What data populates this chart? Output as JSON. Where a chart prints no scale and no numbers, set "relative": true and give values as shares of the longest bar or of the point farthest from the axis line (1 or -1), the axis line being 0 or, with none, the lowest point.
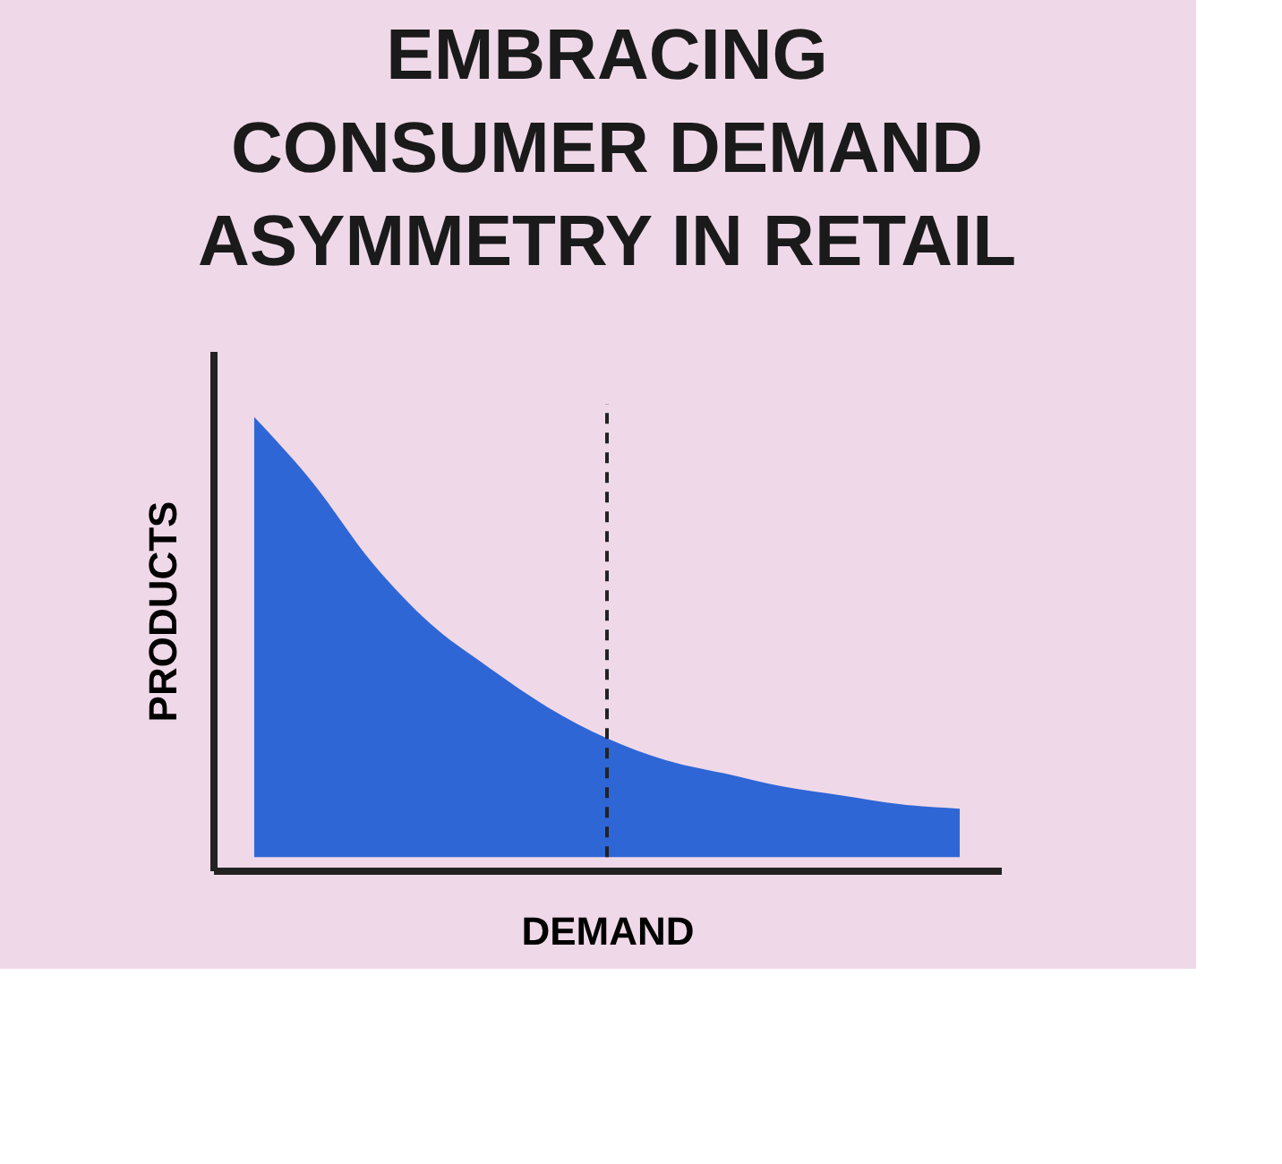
{
  "chart_data": {
    "type": "area",
    "title": "EMBRACING\nCONSUMER DEMAND\nASYMMETRY IN RETAIL",
    "xlabel": "DEMAND",
    "ylabel": "PRODUCTS",
    "relative": true,
    "categories": [
      null,
      null,
      null,
      null,
      null,
      null,
      null,
      null,
      null,
      null,
      null,
      null,
      null
    ],
    "series": [
      {
        "color": "#2f66d6",
        "values": [
          1,
          0.85,
          0.67,
          0.53,
          0.43,
          0.34,
          0.27,
          0.22,
          0.19,
          0.16,
          0.14,
          0.12,
          0.11
        ]
      }
    ]
  }
}
